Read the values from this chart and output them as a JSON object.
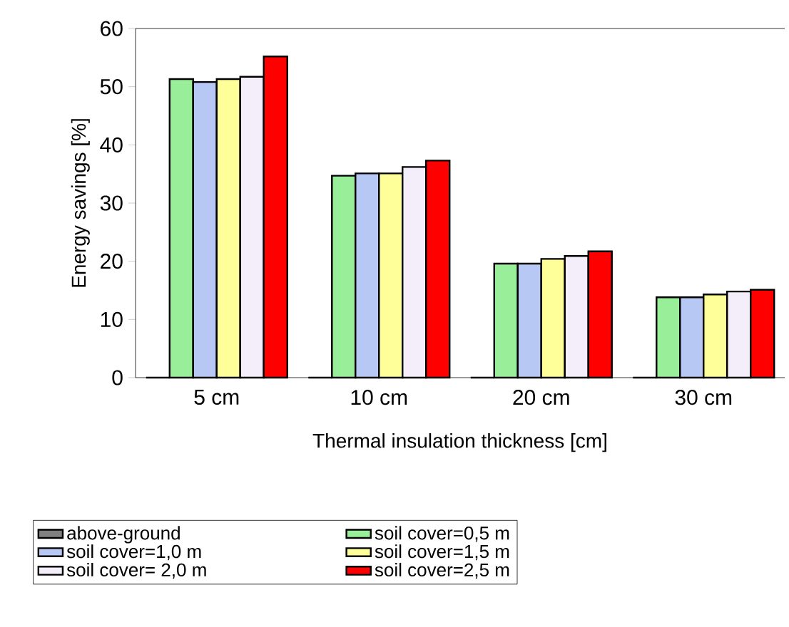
{
  "chart_data": {
    "type": "bar",
    "xlabel": "Thermal insulation thickness [cm]",
    "ylabel": "Energy savings [%]",
    "categories": [
      "5 cm",
      "10 cm",
      "20 cm",
      "30 cm"
    ],
    "series": [
      {
        "name": "above-ground",
        "color": "#808080",
        "values": [
          0,
          0,
          0,
          0
        ]
      },
      {
        "name": "soil cover=0,5 m",
        "color": "#99ee99",
        "values": [
          51.3,
          34.7,
          19.6,
          13.8
        ]
      },
      {
        "name": "soil cover=1,0 m",
        "color": "#b8c8f5",
        "values": [
          50.8,
          35.1,
          19.6,
          13.8
        ]
      },
      {
        "name": "soil cover=1,5 m",
        "color": "#ffff99",
        "values": [
          51.3,
          35.1,
          20.4,
          14.3
        ]
      },
      {
        "name": "soil cover= 2,0  m",
        "color": "#f4eefa",
        "values": [
          51.7,
          36.2,
          20.9,
          14.8
        ]
      },
      {
        "name": "soil cover=2,5 m",
        "color": "#ff0000",
        "values": [
          55.2,
          37.3,
          21.7,
          15.1
        ]
      }
    ],
    "ylim": [
      0,
      60
    ],
    "yticks": [
      0,
      10,
      20,
      30,
      40,
      50,
      60
    ],
    "grid": false,
    "legend": "bottom"
  }
}
